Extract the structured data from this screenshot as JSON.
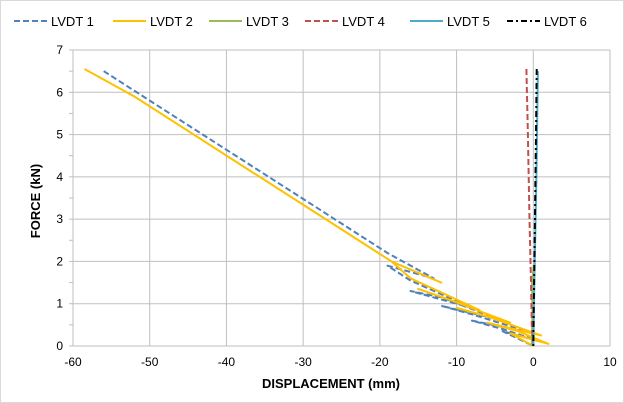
{
  "chart_data": {
    "type": "line",
    "title": "",
    "xlabel": "DISPLACEMENT (mm)",
    "ylabel": "FORCE (kN)",
    "xlim": [
      -60,
      10
    ],
    "ylim": [
      0,
      7
    ],
    "xticks": [
      -60,
      -50,
      -40,
      -30,
      -20,
      -10,
      0,
      10
    ],
    "yticks": [
      0,
      1,
      2,
      3,
      4,
      5,
      6,
      7
    ],
    "grid": "major",
    "legend": "top",
    "series": [
      {
        "name": "LVDT 1",
        "color": "#4f81bd",
        "style": "dash",
        "x": [
          -56,
          -19,
          -13,
          -19,
          -16,
          -8,
          -16,
          -12,
          -4,
          -12,
          -8,
          0,
          -8,
          -4,
          1,
          -4,
          0
        ],
        "y": [
          6.5,
          2.2,
          1.6,
          1.9,
          1.55,
          0.9,
          1.3,
          1.15,
          0.6,
          0.95,
          0.75,
          0.3,
          0.6,
          0.4,
          0.1,
          0.35,
          0
        ]
      },
      {
        "name": "LVDT 2",
        "color": "#ffc000",
        "style": "solid",
        "x": [
          -58.5,
          -52,
          -18.5,
          -12,
          -18.5,
          -16,
          -7,
          -15,
          -11,
          -3,
          -10,
          -6,
          1,
          -6,
          -2,
          2,
          -3,
          0
        ],
        "y": [
          6.55,
          5.9,
          2.0,
          1.5,
          2.0,
          1.6,
          0.85,
          1.35,
          1.1,
          0.55,
          0.9,
          0.7,
          0.25,
          0.55,
          0.35,
          0.05,
          0.3,
          0
        ]
      },
      {
        "name": "LVDT 3",
        "color": "#9bbb59",
        "style": "solid",
        "x": [
          -0.2,
          -0.1,
          -0.15,
          0.05,
          -0.1,
          0
        ],
        "y": [
          0,
          0.8,
          1.5,
          1.9,
          0.5,
          0
        ]
      },
      {
        "name": "LVDT 4",
        "color": "#c0504d",
        "style": "dash",
        "x": [
          -0.9,
          -0.7,
          -0.6,
          -0.5,
          -0.3,
          -0.2,
          0
        ],
        "y": [
          6.55,
          5.0,
          4.0,
          3.0,
          1.5,
          0.5,
          0
        ]
      },
      {
        "name": "LVDT 5",
        "color": "#4bacc6",
        "style": "solid",
        "x": [
          0.6,
          0.5,
          0.4,
          0.3,
          0.15,
          0.05,
          0
        ],
        "y": [
          6.5,
          5.2,
          4.0,
          3.0,
          1.6,
          0.5,
          0
        ]
      },
      {
        "name": "LVDT 6",
        "color": "#000000",
        "style": "dashdot",
        "x": [
          0.45,
          0.35,
          0.25,
          0.15,
          0.05,
          0
        ],
        "y": [
          6.55,
          5.0,
          3.5,
          2.0,
          0.8,
          0
        ]
      }
    ]
  }
}
